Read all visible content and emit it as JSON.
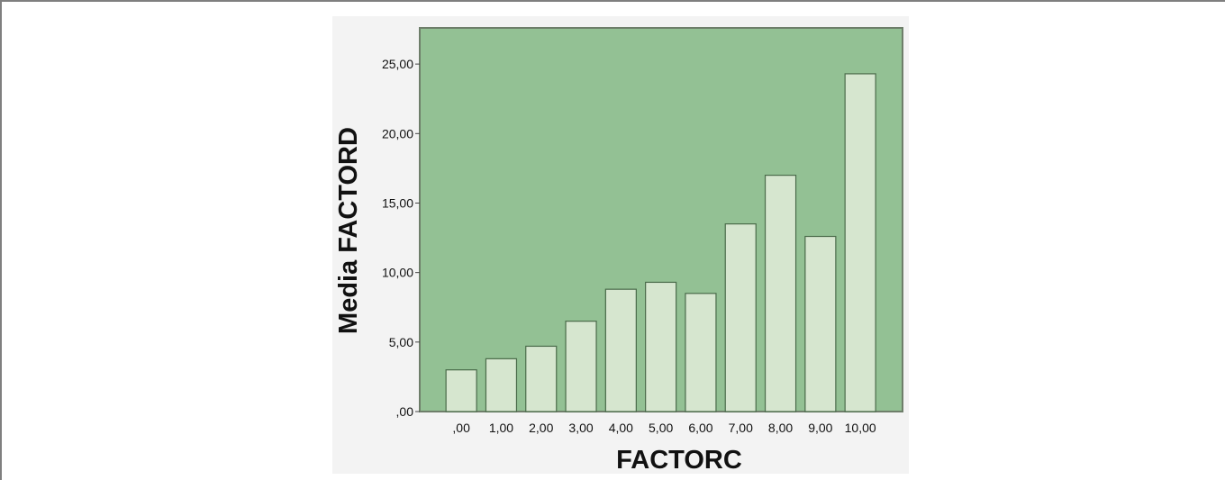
{
  "chart_data": {
    "type": "bar",
    "xlabel": "FACTORC",
    "ylabel": "Media FACTORD",
    "categories": [
      ",00",
      "1,00",
      "2,00",
      "3,00",
      "4,00",
      "5,00",
      "6,00",
      "7,00",
      "8,00",
      "9,00",
      "10,00"
    ],
    "values": [
      3.0,
      3.8,
      4.7,
      6.5,
      8.8,
      9.3,
      8.5,
      13.5,
      17.0,
      12.6,
      24.3
    ],
    "y_ticks": [
      0,
      5,
      10,
      15,
      20,
      25
    ],
    "y_tick_labels": [
      ",00",
      "5,00",
      "10,00",
      "15,00",
      "20,00",
      "25,00"
    ],
    "ylim": [
      0,
      27.6
    ],
    "grid": false,
    "colors": {
      "plot_background": "#93c194",
      "bar_fill": "#d6e6cf",
      "bar_stroke": "#4a6b4a",
      "frame_stroke": "#6e7e6a",
      "figure_background": "#f3f3f3"
    }
  }
}
